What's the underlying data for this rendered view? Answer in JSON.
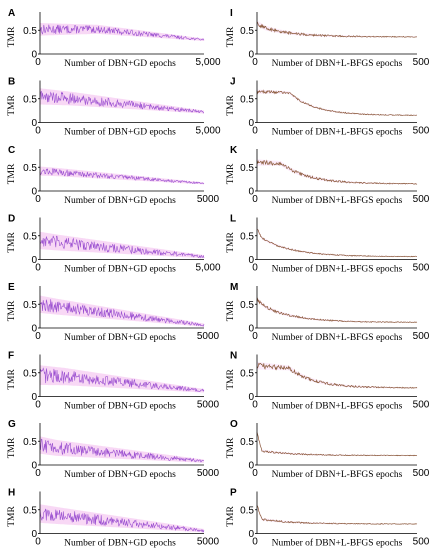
{
  "figure": {
    "background": "#ffffff"
  },
  "colors": {
    "gd_line": "#9a4fd0",
    "gd_band": "#f2b8ec",
    "lbfgs_line": "#8a5a3a",
    "lbfgs_band": "#f6c9f0"
  },
  "chart_data": [
    {
      "panel": "A",
      "type": "line",
      "method": "gd",
      "ylabel": "TMR",
      "xlabel": "Number of DBN+GD epochs",
      "y_tick_labels": [
        "0.5",
        "0"
      ],
      "x_tick_labels": [
        "0",
        "5,000"
      ],
      "xlim": [
        0,
        5000
      ],
      "ylim": [
        0,
        0.8
      ],
      "profile": {
        "start": 0.52,
        "plateau": 0.52,
        "plateau_until": 0.35,
        "end": 0.3,
        "oscillation": 0.1
      }
    },
    {
      "panel": "B",
      "type": "line",
      "method": "gd",
      "ylabel": "TMR",
      "xlabel": "Number of DBN+GD epochs",
      "y_tick_labels": [
        "0.5",
        "0"
      ],
      "x_tick_labels": [
        "0",
        "5,000"
      ],
      "xlim": [
        0,
        5000
      ],
      "ylim": [
        0,
        0.8
      ],
      "profile": {
        "start": 0.55,
        "plateau": 0.5,
        "plateau_until": 0.2,
        "end": 0.22,
        "oscillation": 0.13
      }
    },
    {
      "panel": "C",
      "type": "line",
      "method": "gd",
      "ylabel": "TMR",
      "xlabel": "Number of DBN+GD epochs",
      "y_tick_labels": [
        "0.5",
        "0"
      ],
      "x_tick_labels": [
        "0",
        "5000"
      ],
      "xlim": [
        0,
        5000
      ],
      "ylim": [
        0,
        0.8
      ],
      "profile": {
        "start": 0.42,
        "plateau": 0.4,
        "plateau_until": 0.1,
        "end": 0.16,
        "oscillation": 0.07
      }
    },
    {
      "panel": "D",
      "type": "line",
      "method": "gd",
      "ylabel": "TMR",
      "xlabel": "Number of DBN+GD epochs",
      "y_tick_labels": [
        "0.5",
        "0"
      ],
      "x_tick_labels": [
        "0",
        "5,000"
      ],
      "xlim": [
        0,
        5000
      ],
      "ylim": [
        0,
        0.8
      ],
      "profile": {
        "start": 0.4,
        "plateau": 0.36,
        "plateau_until": 0.1,
        "end": 0.06,
        "oscillation": 0.14
      }
    },
    {
      "panel": "E",
      "type": "line",
      "method": "gd",
      "ylabel": "TMR",
      "xlabel": "Number of DBN+GD epochs",
      "y_tick_labels": [
        "0.5",
        "0"
      ],
      "x_tick_labels": [
        "0",
        "5000"
      ],
      "xlim": [
        0,
        5000
      ],
      "ylim": [
        0,
        0.8
      ],
      "profile": {
        "start": 0.5,
        "plateau": 0.45,
        "plateau_until": 0.1,
        "end": 0.06,
        "oscillation": 0.14
      }
    },
    {
      "panel": "F",
      "type": "line",
      "method": "gd",
      "ylabel": "TMR",
      "xlabel": "Number of DBN+GD epochs",
      "y_tick_labels": [
        "0.5",
        "0"
      ],
      "x_tick_labels": [
        "0",
        "5000"
      ],
      "xlim": [
        0,
        5000
      ],
      "ylim": [
        0,
        0.8
      ],
      "profile": {
        "start": 0.45,
        "plateau": 0.42,
        "plateau_until": 0.15,
        "end": 0.12,
        "oscillation": 0.16
      }
    },
    {
      "panel": "G",
      "type": "line",
      "method": "gd",
      "ylabel": "TMR",
      "xlabel": "Number of DBN+GD epochs",
      "y_tick_labels": [
        "0.5",
        "0"
      ],
      "x_tick_labels": [
        "0",
        "5000"
      ],
      "xlim": [
        0,
        5000
      ],
      "ylim": [
        0,
        0.8
      ],
      "profile": {
        "start": 0.42,
        "plateau": 0.36,
        "plateau_until": 0.1,
        "end": 0.08,
        "oscillation": 0.14
      }
    },
    {
      "panel": "H",
      "type": "line",
      "method": "gd",
      "ylabel": "TMR",
      "xlabel": "Number of DBN+GD epochs",
      "y_tick_labels": [
        "0.5",
        "0"
      ],
      "x_tick_labels": [
        "0",
        "5000"
      ],
      "xlim": [
        0,
        5000
      ],
      "ylim": [
        0,
        0.8
      ],
      "profile": {
        "start": 0.42,
        "plateau": 0.38,
        "plateau_until": 0.1,
        "end": 0.06,
        "oscillation": 0.15
      }
    },
    {
      "panel": "I",
      "type": "line",
      "method": "lbfgs",
      "ylabel": "TMR",
      "xlabel": "Number of DBN+L-BFGS epochs",
      "y_tick_labels": [
        "0.5",
        "0"
      ],
      "x_tick_labels": [
        "0",
        "500"
      ],
      "xlim": [
        0,
        500
      ],
      "ylim": [
        0,
        0.8
      ],
      "profile": {
        "start": 0.65,
        "plateau": 0.55,
        "plateau_until": 0.05,
        "end": 0.36,
        "oscillation": 0.04
      }
    },
    {
      "panel": "J",
      "type": "line",
      "method": "lbfgs",
      "ylabel": "TMR",
      "xlabel": "Number of DBN+L-BFGS epochs",
      "y_tick_labels": [
        "0.5",
        "0"
      ],
      "x_tick_labels": [
        "0",
        "500"
      ],
      "xlim": [
        0,
        500
      ],
      "ylim": [
        0,
        0.8
      ],
      "profile": {
        "start": 0.65,
        "plateau": 0.63,
        "plateau_until": 0.2,
        "end": 0.15,
        "oscillation": 0.03
      }
    },
    {
      "panel": "K",
      "type": "line",
      "method": "lbfgs",
      "ylabel": "TMR",
      "xlabel": "Number of DBN+L-BFGS epochs",
      "y_tick_labels": [
        "0.5",
        "0"
      ],
      "x_tick_labels": [
        "0",
        "500"
      ],
      "xlim": [
        0,
        500
      ],
      "ylim": [
        0,
        0.8
      ],
      "profile": {
        "start": 0.6,
        "plateau": 0.58,
        "plateau_until": 0.15,
        "end": 0.15,
        "oscillation": 0.05
      }
    },
    {
      "panel": "L",
      "type": "line",
      "method": "lbfgs",
      "ylabel": "TMR",
      "xlabel": "Number of DBN+L-BFGS epochs",
      "y_tick_labels": [
        "0.5",
        "0"
      ],
      "x_tick_labels": [
        "0",
        "500"
      ],
      "xlim": [
        0,
        500
      ],
      "ylim": [
        0,
        0.8
      ],
      "profile": {
        "start": 0.65,
        "plateau": 0.45,
        "plateau_until": 0.03,
        "end": 0.06,
        "oscillation": 0.02
      }
    },
    {
      "panel": "M",
      "type": "line",
      "method": "lbfgs",
      "ylabel": "TMR",
      "xlabel": "Number of DBN+L-BFGS epochs",
      "y_tick_labels": [
        "0.5",
        "0"
      ],
      "x_tick_labels": [
        "0",
        "500"
      ],
      "xlim": [
        0,
        500
      ],
      "ylim": [
        0,
        0.8
      ],
      "profile": {
        "start": 0.6,
        "plateau": 0.45,
        "plateau_until": 0.05,
        "end": 0.12,
        "oscillation": 0.03
      }
    },
    {
      "panel": "N",
      "type": "line",
      "method": "lbfgs",
      "ylabel": "TMR",
      "xlabel": "Number of DBN+L-BFGS epochs",
      "y_tick_labels": [
        "0.5",
        "0"
      ],
      "x_tick_labels": [
        "0",
        "500"
      ],
      "xlim": [
        0,
        500
      ],
      "ylim": [
        0,
        0.8
      ],
      "profile": {
        "start": 0.65,
        "plateau": 0.6,
        "plateau_until": 0.2,
        "end": 0.18,
        "oscillation": 0.06
      }
    },
    {
      "panel": "O",
      "type": "line",
      "method": "lbfgs",
      "ylabel": "TMR",
      "xlabel": "Number of DBN+L-BFGS epochs",
      "y_tick_labels": [
        "0.5",
        "0"
      ],
      "x_tick_labels": [
        "0",
        "500"
      ],
      "xlim": [
        0,
        500
      ],
      "ylim": [
        0,
        0.8
      ],
      "profile": {
        "start": 0.7,
        "plateau": 0.3,
        "plateau_until": 0.03,
        "end": 0.2,
        "oscillation": 0.02
      }
    },
    {
      "panel": "P",
      "type": "line",
      "method": "lbfgs",
      "ylabel": "TMR",
      "xlabel": "Number of DBN+L-BFGS epochs",
      "y_tick_labels": [
        "0.5",
        "0"
      ],
      "x_tick_labels": [
        "0",
        "500"
      ],
      "xlim": [
        0,
        500
      ],
      "ylim": [
        0,
        0.8
      ],
      "profile": {
        "start": 0.6,
        "plateau": 0.3,
        "plateau_until": 0.03,
        "end": 0.2,
        "oscillation": 0.02
      }
    }
  ]
}
